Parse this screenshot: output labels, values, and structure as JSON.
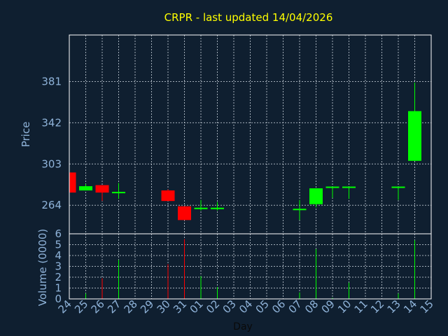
{
  "chart_data": {
    "type": "candlestick",
    "title": "CRPR - last updated 14/04/2026",
    "xlabel": "Day",
    "ylabel": "Price",
    "volume_label": "Volume (0000)",
    "categories": [
      "24",
      "25",
      "26",
      "27",
      "28",
      "29",
      "30",
      "31",
      "01",
      "02",
      "03",
      "04",
      "05",
      "06",
      "07",
      "08",
      "09",
      "10",
      "11",
      "12",
      "13",
      "14",
      "15"
    ],
    "price_ticks": [
      "264",
      "303",
      "342",
      "381"
    ],
    "volume_ticks": [
      "0",
      "1",
      "2",
      "3",
      "4",
      "5",
      "6"
    ],
    "price_range": [
      237,
      425
    ],
    "volume_range": [
      0,
      6
    ],
    "grid": true,
    "candles": [
      {
        "day": "24",
        "open": 295,
        "close": 276,
        "high": 295,
        "low": 276
      },
      {
        "day": "25",
        "open": 278,
        "close": 282,
        "high": 284,
        "low": 278
      },
      {
        "day": "26",
        "open": 283,
        "close": 276,
        "high": 283,
        "low": 268
      },
      {
        "day": "27",
        "open": 275,
        "close": 276,
        "high": 285,
        "low": 270
      },
      {
        "day": "30",
        "open": 278,
        "close": 268,
        "high": 279,
        "low": 268
      },
      {
        "day": "31",
        "open": 263,
        "close": 250,
        "high": 263,
        "low": 250
      },
      {
        "day": "01",
        "open": 260,
        "close": 261,
        "high": 269,
        "low": 259
      },
      {
        "day": "02",
        "open": 260,
        "close": 261,
        "high": 267,
        "low": 259
      },
      {
        "day": "07",
        "open": 259,
        "close": 260,
        "high": 269,
        "low": 250
      },
      {
        "day": "08",
        "open": 265,
        "close": 280,
        "high": 280,
        "low": 262
      },
      {
        "day": "09",
        "open": 281,
        "close": 281,
        "high": 281,
        "low": 271
      },
      {
        "day": "10",
        "open": 281,
        "close": 281,
        "high": 281,
        "low": 270
      },
      {
        "day": "13",
        "open": 281,
        "close": 281,
        "high": 281,
        "low": 269
      },
      {
        "day": "14",
        "open": 306,
        "close": 353,
        "high": 380,
        "low": 306
      }
    ],
    "volume": [
      {
        "day": "24",
        "value": 0,
        "dir": "down"
      },
      {
        "day": "25",
        "value": 0.5,
        "dir": "up"
      },
      {
        "day": "26",
        "value": 1.9,
        "dir": "down"
      },
      {
        "day": "27",
        "value": 3.6,
        "dir": "up"
      },
      {
        "day": "30",
        "value": 3.2,
        "dir": "down"
      },
      {
        "day": "31",
        "value": 5.5,
        "dir": "down"
      },
      {
        "day": "01",
        "value": 2.1,
        "dir": "up"
      },
      {
        "day": "02",
        "value": 1.1,
        "dir": "up"
      },
      {
        "day": "07",
        "value": 0.6,
        "dir": "up"
      },
      {
        "day": "08",
        "value": 4.6,
        "dir": "up"
      },
      {
        "day": "09",
        "value": 0.1,
        "dir": "up"
      },
      {
        "day": "10",
        "value": 1.5,
        "dir": "up"
      },
      {
        "day": "13",
        "value": 0.5,
        "dir": "up"
      },
      {
        "day": "14",
        "value": 5.4,
        "dir": "up"
      }
    ],
    "colors": {
      "background": "#0f1f30",
      "title": "#ffff00",
      "axis_text": "#8fb3d9",
      "frame": "#ffffff",
      "up": "#00ff00",
      "down": "#ff0000"
    }
  }
}
